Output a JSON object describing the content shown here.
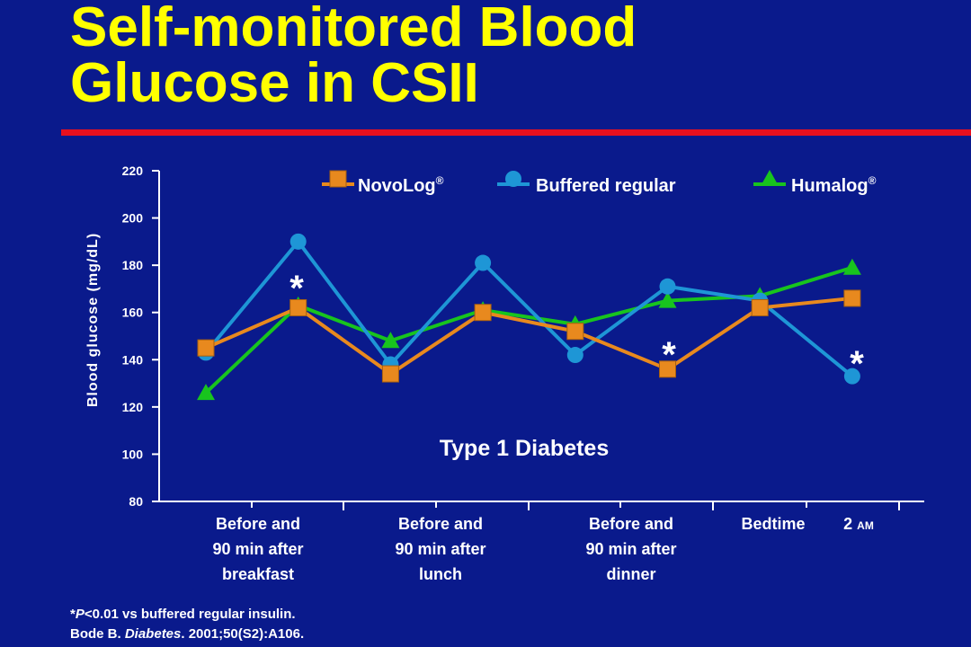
{
  "title": {
    "line1": "Self-monitored Blood",
    "line2": "Glucose in CSII"
  },
  "footnote": {
    "line1_prefix": "*",
    "line1_p": "P",
    "line1_rest": "<0.01 vs buffered regular insulin.",
    "line2_author": "Bode B. ",
    "line2_journal": "Diabetes",
    "line2_rest": ". 2001;50(S2):A106."
  },
  "colors": {
    "background": "#0a1a8c",
    "title": "#ffff00",
    "rule": "#e8101e",
    "novolog": "#e8891e",
    "buffered": "#1e96d6",
    "humalog": "#18c41e"
  },
  "chart_data": {
    "type": "line",
    "annotation": "Type 1 Diabetes",
    "ylabel": "Blood glucose (mg/dL)",
    "ylim": [
      80,
      220
    ],
    "yticks": [
      80,
      100,
      120,
      140,
      160,
      180,
      200,
      220
    ],
    "x": [
      1,
      2,
      3,
      4,
      5,
      6,
      7,
      8
    ],
    "category_groups": [
      {
        "label_lines": [
          "Before and",
          "90 min after",
          "breakfast"
        ],
        "points": [
          1,
          2
        ]
      },
      {
        "label_lines": [
          "Before and",
          "90 min after",
          "lunch"
        ],
        "points": [
          3,
          4
        ]
      },
      {
        "label_lines": [
          "Before and",
          "90 min after",
          "dinner"
        ],
        "points": [
          5,
          6
        ]
      },
      {
        "label_lines": [
          "Bedtime"
        ],
        "points": [
          7
        ]
      },
      {
        "label_lines": [
          "2 AM"
        ],
        "points": [
          8
        ]
      }
    ],
    "series": [
      {
        "name": "NovoLog",
        "name_sup": "®",
        "marker": "square",
        "color": "#e8891e",
        "values": [
          145,
          162,
          134,
          160,
          152,
          136,
          162,
          166
        ]
      },
      {
        "name": "Buffered regular",
        "name_sup": "",
        "marker": "circle",
        "color": "#1e96d6",
        "values": [
          143,
          190,
          138,
          181,
          142,
          171,
          165,
          133
        ]
      },
      {
        "name": "Humalog",
        "name_sup": "®",
        "marker": "triangle",
        "color": "#18c41e",
        "values": [
          126,
          163,
          148,
          161,
          155,
          165,
          167,
          179
        ]
      }
    ],
    "significance_markers": [
      {
        "x": 2,
        "text": "*"
      },
      {
        "x": 6,
        "text": "*"
      },
      {
        "x": 8,
        "text": "*"
      }
    ],
    "legend_position": "top"
  }
}
